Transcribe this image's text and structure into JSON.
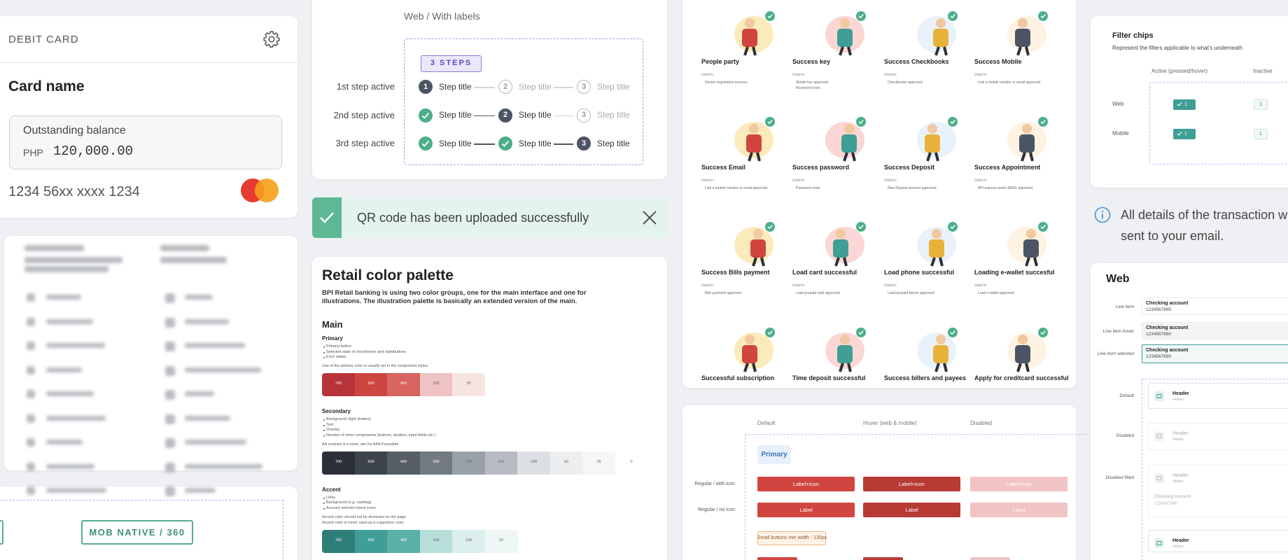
{
  "debit_card": {
    "label": "DEBIT CARD",
    "card_name": "Card name",
    "balance_label": "Outstanding balance",
    "currency": "PHP",
    "amount": "120,000.00",
    "card_number": "1234 56xx xxxx 1234"
  },
  "platform_chip": "MOB NATIVE / 360",
  "stepper": {
    "heading": "Web / With labels",
    "badge": "3 STEPS",
    "rows": [
      {
        "label": "1st step active",
        "steps": [
          {
            "title": "Step title",
            "number": "1",
            "state": "active"
          },
          {
            "title": "Step title",
            "number": "2",
            "state": "todo"
          },
          {
            "title": "Step title",
            "number": "3",
            "state": "todo"
          }
        ]
      },
      {
        "label": "2nd step active",
        "steps": [
          {
            "title": "Step title",
            "state": "done"
          },
          {
            "title": "Step title",
            "number": "2",
            "state": "active"
          },
          {
            "title": "Step title",
            "number": "3",
            "state": "todo"
          }
        ]
      },
      {
        "label": "3rd step active",
        "steps": [
          {
            "title": "Step title",
            "state": "done"
          },
          {
            "title": "Step title",
            "state": "done"
          },
          {
            "title": "Step title",
            "number": "3",
            "state": "active"
          }
        ]
      }
    ]
  },
  "toast": {
    "message": "QR code has been uploaded successfully"
  },
  "palette": {
    "title": "Retail color palette",
    "intro": "BPI Retail banking is using two color groups, one for the main interface and one for illustrations. The illustration palette is basically an extended version of the main.",
    "section": "Main",
    "groups": [
      {
        "name": "Primary",
        "bullets": [
          "Primary button",
          "Selected state of checkboxes and radiobuttons",
          "Error states"
        ],
        "notes": [
          "Use of the primary color is usually set in the component styles."
        ],
        "swatches": [
          {
            "color": "#b9343a",
            "label": "700"
          },
          {
            "color": "#cc4540",
            "label": "500"
          },
          {
            "color": "#d8645f",
            "label": "400"
          },
          {
            "color": "#efc3c3",
            "label": "200"
          },
          {
            "color": "#f8e3e3",
            "label": "50"
          }
        ]
      },
      {
        "name": "Secondary",
        "bullets": [
          "Background (light shades)",
          "Text",
          "Overlay",
          "Number of other components (buttons, dividers, input fields etc.)"
        ],
        "notes": [
          "AA contrast is a must, aim for AAA if possible."
        ],
        "swatches": [
          {
            "color": "#2b3038",
            "label": "700"
          },
          {
            "color": "#3d434b",
            "label": "500"
          },
          {
            "color": "#575d66",
            "label": "400"
          },
          {
            "color": "#737982",
            "label": "300"
          },
          {
            "color": "#9aa0a8",
            "label": "250"
          },
          {
            "color": "#b8bcc2",
            "label": "200"
          },
          {
            "color": "#dcdfe3",
            "label": "100"
          },
          {
            "color": "#eceef0",
            "label": "50"
          },
          {
            "color": "#f5f6f7",
            "label": "25"
          },
          {
            "color": "#ffffff",
            "label": "0"
          }
        ]
      },
      {
        "name": "Accent",
        "bullets": [
          "Links",
          "Background (e.g. cashtag)",
          "Account selector check icons"
        ],
        "notes": [
          "Accent color should not be dominant on the page.",
          "Accent color is never used as a supportive color"
        ],
        "swatches": [
          {
            "color": "#2f7f78",
            "label": "700"
          },
          {
            "color": "#3f9e95",
            "label": "500"
          },
          {
            "color": "#5bb0a8",
            "label": "400"
          },
          {
            "color": "#b9dfda",
            "label": "200"
          },
          {
            "color": "#dcefed",
            "label": "100"
          },
          {
            "color": "#eef7f6",
            "label": "50"
          }
        ]
      }
    ]
  },
  "illustrations": {
    "used_in_label": "Used in:",
    "items": [
      {
        "name": "People party",
        "used_in": [
          "Device registration success"
        ]
      },
      {
        "name": "Success key",
        "used_in": [
          "Mobile key approved",
          "Password reset"
        ]
      },
      {
        "name": "Success Checkbooks",
        "used_in": [
          "Checkbooks approved"
        ]
      },
      {
        "name": "Success Mobile",
        "used_in": [
          "Link a mobile number or email approved"
        ]
      },
      {
        "name": "Success Email",
        "used_in": [
          "Link a mobile number or email approved"
        ]
      },
      {
        "name": "Success password",
        "used_in": [
          "Password reset"
        ]
      },
      {
        "name": "Success Deposit",
        "used_in": [
          "New Deposit account approved"
        ]
      },
      {
        "name": "Success Appointment",
        "used_in": [
          "BPI express assist (BEA) approved"
        ]
      },
      {
        "name": "Success Bills payment",
        "used_in": [
          "Bills payment approved"
        ]
      },
      {
        "name": "Load card successful",
        "used_in": [
          "Load prepaid card approved"
        ]
      },
      {
        "name": "Load phone successful",
        "used_in": [
          "Load prepaid phone approved"
        ]
      },
      {
        "name": "Loading e-wallet succesful",
        "used_in": [
          "Load e-wallet approved"
        ]
      },
      {
        "name": "Successful subscription"
      },
      {
        "name": "Time deposit successful"
      },
      {
        "name": "Success billers and payees"
      },
      {
        "name": "Apply for creditcard successful"
      }
    ]
  },
  "buttons": {
    "columns": [
      "Default",
      "Hover (web & mobile)",
      "Disabled"
    ],
    "section": "Primary",
    "rows": [
      {
        "label": "Regular / with icon",
        "button": "Label+Icon"
      },
      {
        "label": "Regular / no icon",
        "button": "Label"
      }
    ],
    "note": "Small buttons min width - 130px"
  },
  "filter_chips": {
    "title": "Filter chips",
    "subtitle": "Represent the filters applicable to what's underneath",
    "columns": [
      "Active (pressed/hover)",
      "Inactive"
    ],
    "rows": [
      "Web",
      "Mobile"
    ],
    "chip_label": "1"
  },
  "info": {
    "lines": [
      "All details of the transaction w",
      "sent to your email."
    ]
  },
  "web_list": {
    "title": "Web",
    "line_items": [
      {
        "label": "Line item",
        "title": "Checking account",
        "number": "1234567890"
      },
      {
        "label": "Line item hover",
        "title": "Checking account",
        "number": "1234567890"
      },
      {
        "label": "Line item selected",
        "title": "Checking account",
        "number": "1234567890"
      }
    ],
    "fields": [
      {
        "label": "Default",
        "header": "Header",
        "helper": "Helper"
      },
      {
        "label": "Disabled",
        "header": "Header",
        "helper": "Helper"
      },
      {
        "label": "Disabled filled",
        "header": "Header",
        "helper": "Helper",
        "value_title": "Checking Account",
        "value_number": "1234567890"
      },
      {
        "header": "Header",
        "helper": "Helper"
      }
    ]
  }
}
